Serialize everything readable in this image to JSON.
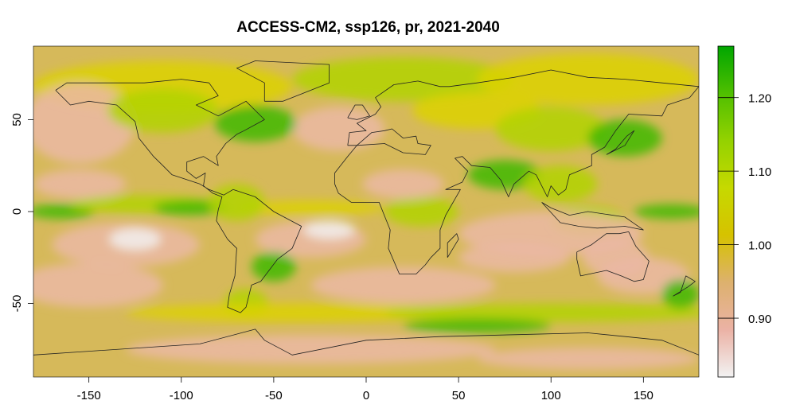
{
  "title": "ACCESS-CM2, ssp126, pr, 2021-2040",
  "map": {
    "x_range": [
      -180,
      180
    ],
    "y_range": [
      -90,
      90
    ],
    "x_ticks": [
      -150,
      -100,
      -50,
      0,
      50,
      100,
      150
    ],
    "y_ticks": [
      -50,
      0,
      50
    ],
    "x_tick_labels": [
      "-150",
      "-100",
      "-50",
      "0",
      "50",
      "100",
      "150"
    ],
    "y_tick_labels": [
      "-50",
      "0",
      "50"
    ]
  },
  "colorbar": {
    "range": [
      0.82,
      1.27
    ],
    "ticks": [
      0.9,
      1.0,
      1.1,
      1.2
    ],
    "tick_labels": [
      "0.90",
      "1.00",
      "1.10",
      "1.20"
    ],
    "colors": [
      "#f2f2f2",
      "#ebb2a5",
      "#ddb16e",
      "#d6c200",
      "#c6d900",
      "#94d200",
      "#4fbf00",
      "#00a600"
    ]
  },
  "colors": {
    "land_ocean_base": "#d6b95a",
    "dry_pink": "#ebb8a5",
    "white_min": "#f2f0ef",
    "yellow": "#dcd200",
    "lime": "#b2d400",
    "green": "#3fb800",
    "border": "#222222"
  }
}
